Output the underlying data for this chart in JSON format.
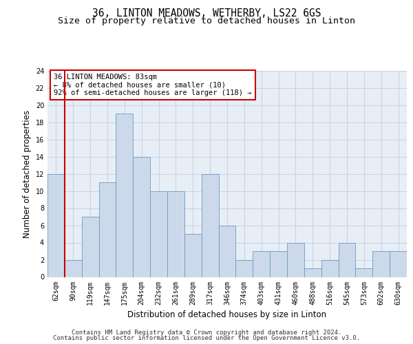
{
  "title_line1": "36, LINTON MEADOWS, WETHERBY, LS22 6GS",
  "title_line2": "Size of property relative to detached houses in Linton",
  "xlabel": "Distribution of detached houses by size in Linton",
  "ylabel": "Number of detached properties",
  "categories": [
    "62sqm",
    "90sqm",
    "119sqm",
    "147sqm",
    "175sqm",
    "204sqm",
    "232sqm",
    "261sqm",
    "289sqm",
    "317sqm",
    "346sqm",
    "374sqm",
    "403sqm",
    "431sqm",
    "460sqm",
    "488sqm",
    "516sqm",
    "545sqm",
    "573sqm",
    "602sqm",
    "630sqm"
  ],
  "values": [
    12,
    2,
    7,
    11,
    19,
    14,
    10,
    10,
    5,
    12,
    6,
    2,
    3,
    3,
    4,
    1,
    2,
    4,
    1,
    3,
    3
  ],
  "bar_color": "#ccd9ea",
  "bar_edge_color": "#6a9abf",
  "grid_color": "#c8d4e4",
  "background_color": "#e8eef6",
  "annotation_line1": "36 LINTON MEADOWS: 83sqm",
  "annotation_line2": "← 8% of detached houses are smaller (10)",
  "annotation_line3": "92% of semi-detached houses are larger (118) →",
  "annotation_box_color": "#cc0000",
  "property_line_x": 0.5,
  "ylim": [
    0,
    24
  ],
  "yticks": [
    0,
    2,
    4,
    6,
    8,
    10,
    12,
    14,
    16,
    18,
    20,
    22,
    24
  ],
  "footer_line1": "Contains HM Land Registry data © Crown copyright and database right 2024.",
  "footer_line2": "Contains public sector information licensed under the Open Government Licence v3.0.",
  "title_fontsize": 10.5,
  "subtitle_fontsize": 9.5,
  "axis_label_fontsize": 8.5,
  "tick_fontsize": 7,
  "annotation_fontsize": 7.5,
  "footer_fontsize": 6.5
}
